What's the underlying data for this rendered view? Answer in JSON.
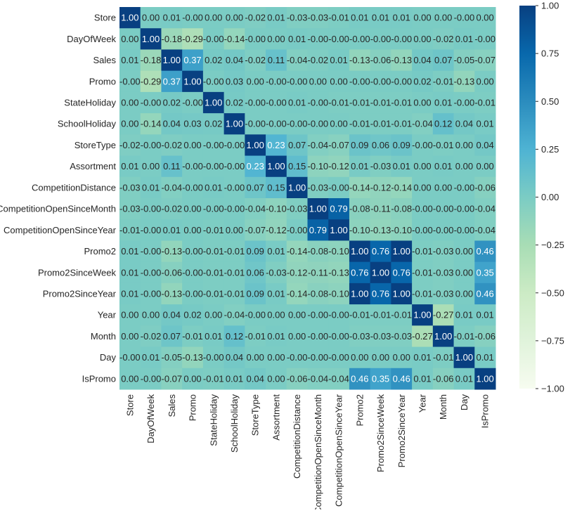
{
  "chart_data": {
    "type": "heatmap",
    "title": "",
    "colormap": "GnBu",
    "vlim": [
      -1,
      1
    ],
    "colorbar_ticks": [
      "1.00",
      "0.75",
      "0.50",
      "0.25",
      "0.00",
      "−0.25",
      "−0.50",
      "−0.75",
      "−1.00"
    ],
    "colorbar_tick_values": [
      1,
      0.75,
      0.5,
      0.25,
      0,
      -0.25,
      -0.5,
      -0.75,
      -1
    ],
    "colormap_stops": [
      "#f7fcf0",
      "#e0f3db",
      "#ccebc5",
      "#a8ddb5",
      "#7bccc4",
      "#4eb3d3",
      "#2b8cbe",
      "#0868ac",
      "#084081"
    ],
    "labels": [
      "Store",
      "DayOfWeek",
      "Sales",
      "Promo",
      "StateHoliday",
      "SchoolHoliday",
      "StoreType",
      "Assortment",
      "CompetitionDistance",
      "CompetitionOpenSinceMonth",
      "CompetitionOpenSinceYear",
      "Promo2",
      "Promo2SinceWeek",
      "Promo2SinceYear",
      "Year",
      "Month",
      "Day",
      "IsPromo"
    ],
    "annotations": [
      [
        "1.00",
        "0.00",
        "0.01",
        "-0.00",
        "0.00",
        "0.00",
        "-0.02",
        "0.01",
        "-0.03",
        "-0.03",
        "-0.01",
        "0.01",
        "0.01",
        "0.01",
        "0.00",
        "0.00",
        "-0.00",
        "0.00"
      ],
      [
        "0.00",
        "1.00",
        "-0.18",
        "-0.29",
        "-0.00",
        "-0.14",
        "-0.00",
        "0.00",
        "0.01",
        "-0.00",
        "-0.00",
        "-0.00",
        "-0.00",
        "-0.00",
        "0.00",
        "-0.02",
        "0.01",
        "-0.00"
      ],
      [
        "0.01",
        "-0.18",
        "1.00",
        "0.37",
        "0.02",
        "0.04",
        "-0.02",
        "0.11",
        "-0.04",
        "-0.02",
        "0.01",
        "-0.13",
        "-0.06",
        "-0.13",
        "0.04",
        "0.07",
        "-0.05",
        "-0.07"
      ],
      [
        "-0.00",
        "-0.29",
        "0.37",
        "1.00",
        "-0.00",
        "0.03",
        "0.00",
        "-0.00",
        "-0.00",
        "0.00",
        "0.00",
        "-0.00",
        "-0.00",
        "-0.00",
        "0.02",
        "-0.01",
        "-0.13",
        "0.00"
      ],
      [
        "0.00",
        "-0.00",
        "0.02",
        "-0.00",
        "1.00",
        "0.02",
        "-0.00",
        "-0.00",
        "0.01",
        "-0.00",
        "-0.01",
        "-0.01",
        "-0.01",
        "-0.01",
        "0.00",
        "0.01",
        "-0.00",
        "-0.01"
      ],
      [
        "0.00",
        "-0.14",
        "0.04",
        "0.03",
        "0.02",
        "1.00",
        "-0.00",
        "-0.00",
        "-0.00",
        "-0.00",
        "0.00",
        "-0.01",
        "-0.01",
        "-0.01",
        "-0.04",
        "0.12",
        "0.04",
        "0.01"
      ],
      [
        "-0.02",
        "-0.00",
        "-0.02",
        "0.00",
        "-0.00",
        "-0.00",
        "1.00",
        "0.23",
        "0.07",
        "-0.04",
        "-0.07",
        "0.09",
        "0.06",
        "0.09",
        "-0.00",
        "-0.01",
        "0.00",
        "0.04"
      ],
      [
        "0.01",
        "0.00",
        "0.11",
        "-0.00",
        "-0.00",
        "-0.00",
        "0.23",
        "1.00",
        "0.15",
        "-0.10",
        "-0.12",
        "0.01",
        "-0.03",
        "0.01",
        "0.00",
        "0.01",
        "0.00",
        "0.00"
      ],
      [
        "-0.03",
        "0.01",
        "-0.04",
        "-0.00",
        "0.01",
        "-0.00",
        "0.07",
        "0.15",
        "1.00",
        "-0.03",
        "-0.00",
        "-0.14",
        "-0.12",
        "-0.14",
        "0.00",
        "0.00",
        "-0.00",
        "-0.06"
      ],
      [
        "-0.03",
        "-0.00",
        "-0.02",
        "0.00",
        "-0.00",
        "-0.00",
        "-0.04",
        "-0.10",
        "-0.03",
        "1.00",
        "0.79",
        "-0.08",
        "-0.11",
        "-0.08",
        "-0.00",
        "-0.00",
        "-0.00",
        "-0.04"
      ],
      [
        "-0.01",
        "-0.00",
        "0.01",
        "0.00",
        "-0.01",
        "0.00",
        "-0.07",
        "-0.12",
        "-0.00",
        "0.79",
        "1.00",
        "-0.10",
        "-0.13",
        "-0.10",
        "-0.00",
        "-0.00",
        "-0.00",
        "-0.04"
      ],
      [
        "0.01",
        "-0.00",
        "-0.13",
        "-0.00",
        "-0.01",
        "-0.01",
        "0.09",
        "0.01",
        "-0.14",
        "-0.08",
        "-0.10",
        "1.00",
        "0.76",
        "1.00",
        "-0.01",
        "-0.03",
        "0.00",
        "0.46"
      ],
      [
        "0.01",
        "-0.00",
        "-0.06",
        "-0.00",
        "-0.01",
        "-0.01",
        "0.06",
        "-0.03",
        "-0.12",
        "-0.11",
        "-0.13",
        "0.76",
        "1.00",
        "0.76",
        "-0.01",
        "-0.03",
        "0.00",
        "0.35"
      ],
      [
        "0.01",
        "-0.00",
        "-0.13",
        "-0.00",
        "-0.01",
        "-0.01",
        "0.09",
        "0.01",
        "-0.14",
        "-0.08",
        "-0.10",
        "1.00",
        "0.76",
        "1.00",
        "-0.01",
        "-0.03",
        "0.00",
        "0.46"
      ],
      [
        "0.00",
        "0.00",
        "0.04",
        "0.02",
        "0.00",
        "-0.04",
        "-0.00",
        "0.00",
        "0.00",
        "-0.00",
        "-0.00",
        "-0.01",
        "-0.01",
        "-0.01",
        "1.00",
        "-0.27",
        "0.01",
        "0.01"
      ],
      [
        "0.00",
        "-0.02",
        "0.07",
        "-0.01",
        "0.01",
        "0.12",
        "-0.01",
        "0.01",
        "0.00",
        "-0.00",
        "-0.00",
        "-0.03",
        "-0.03",
        "-0.03",
        "-0.27",
        "1.00",
        "-0.01",
        "-0.06"
      ],
      [
        "-0.00",
        "0.01",
        "-0.05",
        "-0.13",
        "-0.00",
        "0.04",
        "0.00",
        "0.00",
        "-0.00",
        "-0.00",
        "-0.00",
        "0.00",
        "0.00",
        "0.00",
        "0.01",
        "-0.01",
        "1.00",
        "0.01"
      ],
      [
        "0.00",
        "-0.00",
        "-0.07",
        "0.00",
        "-0.01",
        "0.01",
        "0.04",
        "0.00",
        "-0.06",
        "-0.04",
        "-0.04",
        "0.46",
        "0.35",
        "0.46",
        "0.01",
        "-0.06",
        "0.01",
        "1.00"
      ]
    ]
  }
}
